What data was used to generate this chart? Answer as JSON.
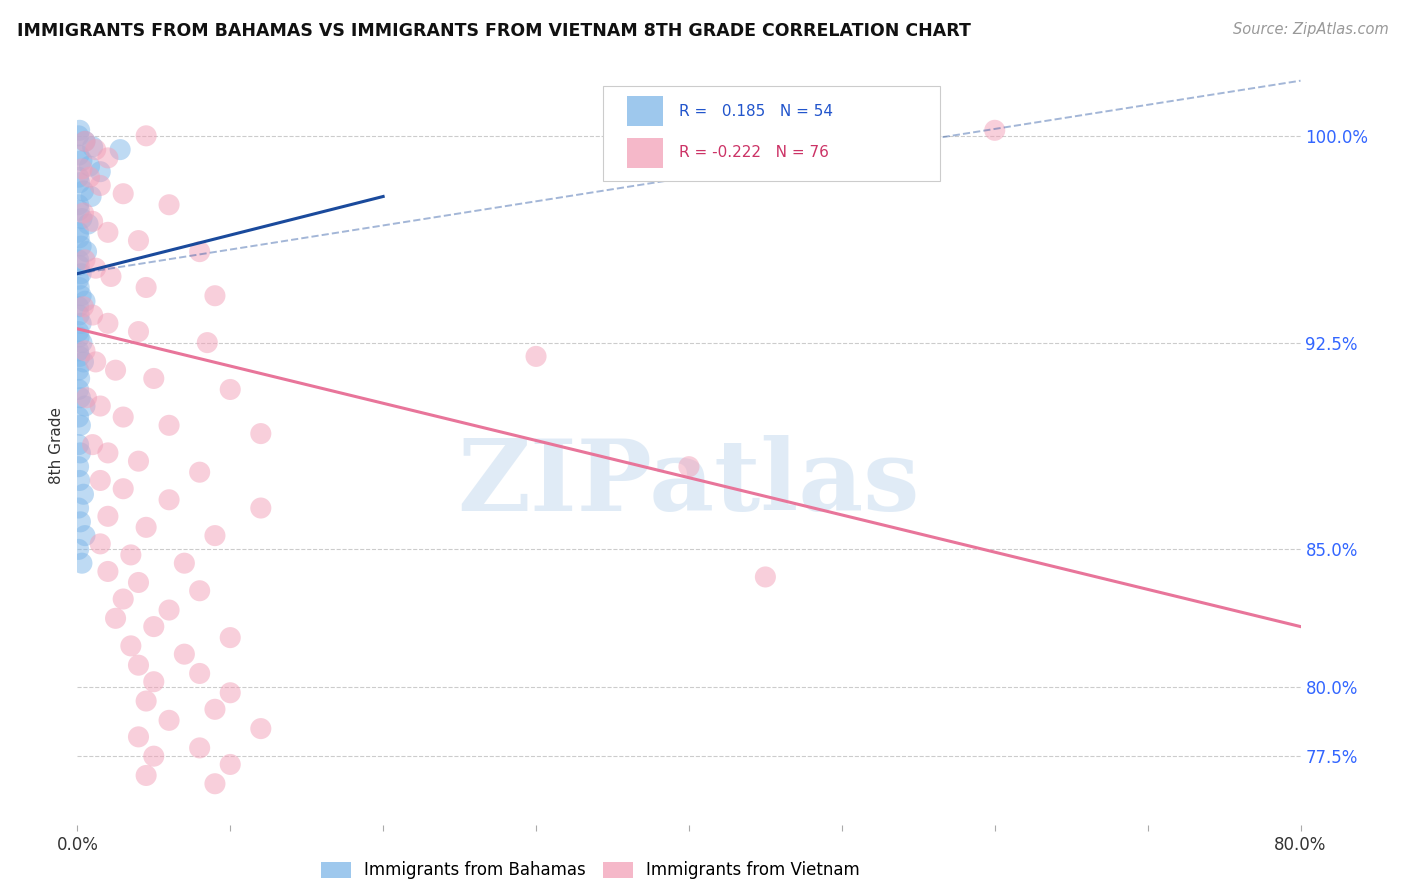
{
  "title": "IMMIGRANTS FROM BAHAMAS VS IMMIGRANTS FROM VIETNAM 8TH GRADE CORRELATION CHART",
  "source": "Source: ZipAtlas.com",
  "ylabel": "8th Grade",
  "watermark": "ZIPatlas",
  "legend_label_blue": "Immigrants from Bahamas",
  "legend_label_pink": "Immigrants from Vietnam",
  "R_blue": 0.185,
  "N_blue": 54,
  "R_pink": -0.222,
  "N_pink": 76,
  "xlim": [
    0.0,
    80.0
  ],
  "ylim": [
    75.0,
    102.5
  ],
  "yticks": [
    77.5,
    80.0,
    85.0,
    92.5,
    100.0
  ],
  "xticks": [
    0.0,
    10.0,
    20.0,
    30.0,
    40.0,
    50.0,
    60.0,
    70.0,
    80.0
  ],
  "x_tick_labels": [
    "0.0%",
    "",
    "",
    "",
    "",
    "",
    "",
    "",
    "80.0%"
  ],
  "right_y_labels": [
    [
      77.5,
      "77.5%"
    ],
    [
      80.0,
      "80.0%"
    ],
    [
      85.0,
      "85.0%"
    ],
    [
      92.5,
      "92.5%"
    ],
    [
      100.0,
      "100.0%"
    ]
  ],
  "blue_color": "#7EB6E8",
  "pink_color": "#F2A0B8",
  "blue_line_color": "#1A4A9C",
  "pink_line_color": "#E8759A",
  "blue_scatter_x": [
    0.08,
    0.15,
    0.5,
    1.0,
    2.8,
    0.1,
    0.3,
    0.8,
    1.5,
    0.08,
    0.15,
    0.4,
    0.9,
    0.08,
    0.12,
    0.3,
    0.7,
    0.08,
    0.12,
    0.25,
    0.6,
    0.08,
    0.12,
    0.25,
    0.08,
    0.12,
    0.25,
    0.5,
    0.08,
    0.12,
    0.25,
    0.08,
    0.12,
    0.3,
    0.08,
    0.15,
    0.4,
    0.08,
    0.15,
    0.08,
    0.2,
    0.5,
    0.08,
    0.2,
    0.08,
    0.2,
    0.08,
    0.15,
    0.4,
    0.08,
    0.2,
    0.5,
    0.08,
    0.3
  ],
  "blue_scatter_y": [
    100.0,
    100.2,
    99.8,
    99.6,
    99.5,
    99.3,
    99.1,
    98.9,
    98.7,
    98.5,
    98.3,
    98.0,
    97.8,
    97.5,
    97.3,
    97.0,
    96.8,
    96.5,
    96.3,
    96.0,
    95.8,
    95.5,
    95.3,
    95.0,
    94.8,
    94.5,
    94.2,
    94.0,
    93.8,
    93.5,
    93.2,
    92.9,
    92.7,
    92.5,
    92.2,
    92.0,
    91.8,
    91.5,
    91.2,
    90.8,
    90.5,
    90.2,
    89.8,
    89.5,
    88.8,
    88.5,
    88.0,
    87.5,
    87.0,
    86.5,
    86.0,
    85.5,
    85.0,
    84.5
  ],
  "pink_scatter_x": [
    0.5,
    1.2,
    2.0,
    4.5,
    0.3,
    0.8,
    1.5,
    3.0,
    6.0,
    0.4,
    1.0,
    2.0,
    4.0,
    8.0,
    0.5,
    1.2,
    2.2,
    4.5,
    9.0,
    0.4,
    1.0,
    2.0,
    4.0,
    8.5,
    0.5,
    1.2,
    2.5,
    5.0,
    10.0,
    0.6,
    1.5,
    3.0,
    6.0,
    12.0,
    1.0,
    2.0,
    4.0,
    8.0,
    1.5,
    3.0,
    6.0,
    12.0,
    2.0,
    4.5,
    9.0,
    1.5,
    3.5,
    7.0,
    2.0,
    4.0,
    8.0,
    3.0,
    6.0,
    2.5,
    5.0,
    10.0,
    3.5,
    7.0,
    4.0,
    8.0,
    5.0,
    10.0,
    4.5,
    9.0,
    6.0,
    12.0,
    4.0,
    8.0,
    5.0,
    10.0,
    4.5,
    9.0,
    60.0,
    30.0,
    40.0,
    45.0
  ],
  "pink_scatter_y": [
    99.8,
    99.5,
    99.2,
    100.0,
    98.8,
    98.5,
    98.2,
    97.9,
    97.5,
    97.2,
    96.9,
    96.5,
    96.2,
    95.8,
    95.5,
    95.2,
    94.9,
    94.5,
    94.2,
    93.8,
    93.5,
    93.2,
    92.9,
    92.5,
    92.2,
    91.8,
    91.5,
    91.2,
    90.8,
    90.5,
    90.2,
    89.8,
    89.5,
    89.2,
    88.8,
    88.5,
    88.2,
    87.8,
    87.5,
    87.2,
    86.8,
    86.5,
    86.2,
    85.8,
    85.5,
    85.2,
    84.8,
    84.5,
    84.2,
    83.8,
    83.5,
    83.2,
    82.8,
    82.5,
    82.2,
    81.8,
    81.5,
    81.2,
    80.8,
    80.5,
    80.2,
    79.8,
    79.5,
    79.2,
    78.8,
    78.5,
    78.2,
    77.8,
    77.5,
    77.2,
    76.8,
    76.5,
    100.2,
    92.0,
    88.0,
    84.0
  ],
  "blue_trend_x0": 0.0,
  "blue_trend_x1": 20.0,
  "blue_trend_y0": 95.0,
  "blue_trend_y1": 97.8,
  "blue_dashed_x0": 0.0,
  "blue_dashed_x1": 80.0,
  "blue_dashed_y0": 95.0,
  "blue_dashed_y1": 102.0,
  "pink_trend_x0": 0.0,
  "pink_trend_x1": 80.0,
  "pink_trend_y0": 93.0,
  "pink_trend_y1": 82.2
}
